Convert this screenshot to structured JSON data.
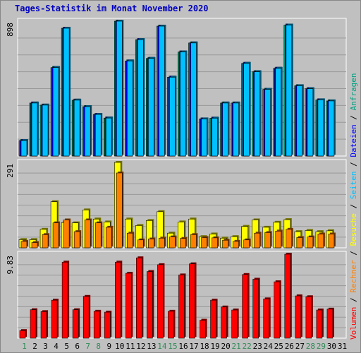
{
  "chart_data": [
    {
      "type": "bar",
      "title": "Tages-Statistik im Monat November 2020",
      "categories": [
        "1",
        "2",
        "3",
        "4",
        "5",
        "6",
        "7",
        "8",
        "9",
        "10",
        "11",
        "12",
        "13",
        "14",
        "15",
        "16",
        "17",
        "18",
        "19",
        "20",
        "21",
        "22",
        "23",
        "24",
        "25",
        "26",
        "27",
        "28",
        "29",
        "30",
        "31"
      ],
      "weekend_days": [
        "1",
        "7",
        "8",
        "14",
        "15",
        "21",
        "22",
        "28",
        "29"
      ],
      "ylim": [
        0,
        898
      ],
      "scale_label": "898",
      "series": [
        {
          "name": "Anfragen",
          "color": "#00a080",
          "values": [
            103,
            353,
            339,
            589,
            851,
            372,
            329,
            277,
            253,
            898,
            633,
            775,
            650,
            865,
            525,
            693,
            753,
            247,
            252,
            353,
            353,
            617,
            561,
            444,
            584,
            872,
            468,
            448,
            374,
            367,
            0
          ]
        },
        {
          "name": "Dateien",
          "color": "#0000ff",
          "values": [
            103,
            353,
            339,
            589,
            851,
            372,
            329,
            277,
            253,
            898,
            633,
            775,
            650,
            865,
            525,
            693,
            753,
            247,
            252,
            353,
            353,
            617,
            561,
            444,
            584,
            872,
            468,
            448,
            374,
            367,
            0
          ]
        },
        {
          "name": "Seiten",
          "color": "#00c0ff",
          "values": [
            103,
            353,
            339,
            589,
            851,
            372,
            329,
            277,
            253,
            898,
            633,
            775,
            650,
            865,
            525,
            693,
            753,
            247,
            252,
            353,
            353,
            617,
            561,
            444,
            584,
            872,
            468,
            448,
            374,
            367,
            0
          ]
        }
      ]
    },
    {
      "type": "bar",
      "ylim": [
        0,
        291
      ],
      "scale_label": "291",
      "series": [
        {
          "name": "Besuche",
          "color": "#ffff00",
          "values": [
            28,
            28,
            63,
            157,
            86,
            85,
            129,
            98,
            88,
            291,
            98,
            76,
            93,
            123,
            50,
            88,
            98,
            38,
            47,
            33,
            38,
            73,
            95,
            70,
            87,
            96,
            55,
            59,
            55,
            58,
            0
          ]
        },
        {
          "name": "Rechner",
          "color": "#ff8000",
          "values": [
            22,
            18,
            45,
            85,
            95,
            55,
            95,
            85,
            70,
            255,
            50,
            27,
            30,
            33,
            37,
            32,
            45,
            35,
            34,
            26,
            22,
            27,
            50,
            52,
            57,
            63,
            35,
            37,
            47,
            47,
            0
          ]
        }
      ]
    },
    {
      "type": "bar",
      "ylim": [
        0,
        9.83
      ],
      "scale_label": "9.83",
      "series": [
        {
          "name": "Volumen",
          "color": "#ff0000",
          "values": [
            0.89,
            3.33,
            3.11,
            4.45,
            8.9,
            3.33,
            4.89,
            3.15,
            3.05,
            8.9,
            7.6,
            9.4,
            7.8,
            8.6,
            3.15,
            7.4,
            8.7,
            2.1,
            4.45,
            3.65,
            3.3,
            7.45,
            6.9,
            4.6,
            6.6,
            9.83,
            4.95,
            4.85,
            3.3,
            3.4,
            0
          ]
        }
      ]
    }
  ],
  "colors": {
    "background": "#c0c0c0",
    "plot_background": "#c0c0c0",
    "grid": "#999999",
    "title": "#0000c0",
    "axis_text": "#000000",
    "day_weekday": "#000000",
    "day_weekend": "#2e8b57",
    "separator": "#000000"
  }
}
